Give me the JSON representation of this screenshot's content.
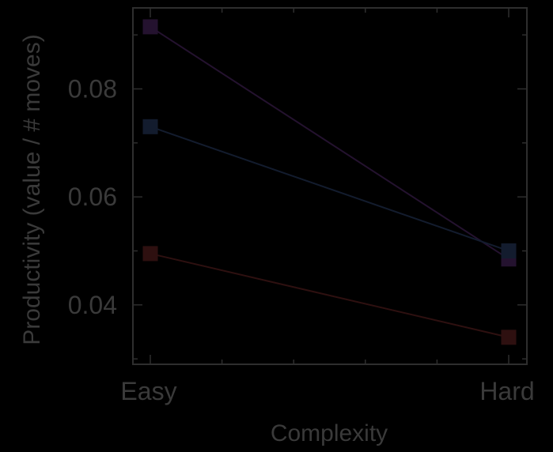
{
  "chart_data": {
    "type": "line",
    "xlabel": "Complexity",
    "ylabel": "Productivity (value / # moves)",
    "categories": [
      "Easy",
      "Hard"
    ],
    "series": [
      {
        "values": [
          0.0915,
          0.0485
        ],
        "color": "#24122f"
      },
      {
        "values": [
          0.073,
          0.05
        ],
        "color": "#131c2e"
      },
      {
        "values": [
          0.0495,
          0.034
        ],
        "color": "#2e1010"
      }
    ],
    "ylim": [
      0.029,
      0.095
    ],
    "yticks": [
      0.04,
      0.06,
      0.08
    ],
    "ytick_labels": [
      "0.04",
      "0.06",
      "0.08"
    ],
    "marker": "square",
    "grid": false,
    "legend": "none"
  }
}
